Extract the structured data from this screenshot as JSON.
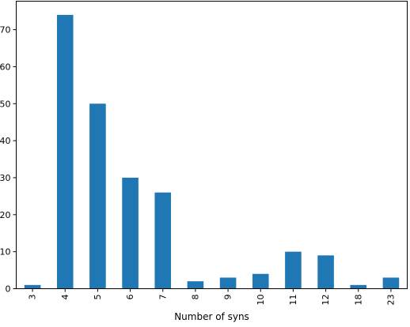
{
  "chart_data": {
    "type": "bar",
    "categories": [
      "3",
      "4",
      "5",
      "6",
      "7",
      "8",
      "9",
      "10",
      "11",
      "12",
      "18",
      "23"
    ],
    "values": [
      1,
      74,
      50,
      30,
      26,
      2,
      3,
      4,
      10,
      9,
      1,
      3
    ],
    "title": "",
    "xlabel": "Number of syns",
    "ylabel": "",
    "ylim": [
      0,
      77.7
    ],
    "yticks": [
      0,
      10,
      20,
      30,
      40,
      50,
      60,
      70
    ],
    "bar_color": "#1f77b4",
    "grid": false,
    "legend": "none"
  }
}
